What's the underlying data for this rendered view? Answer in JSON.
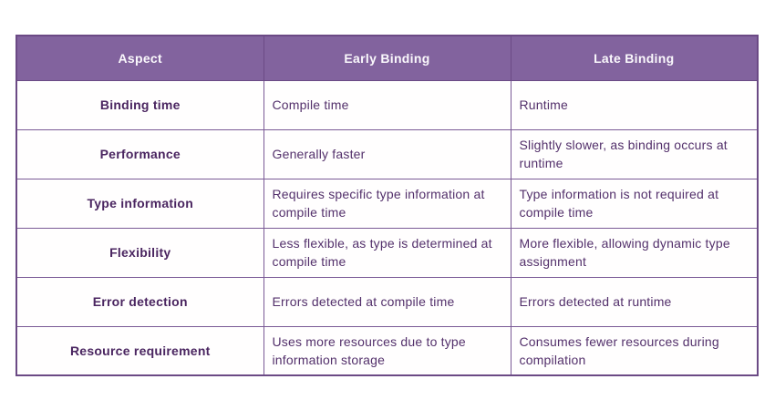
{
  "chart_data": {
    "type": "table",
    "title": "",
    "columns": [
      "Aspect",
      "Early Binding",
      "Late Binding"
    ],
    "rows": [
      [
        "Binding time",
        "Compile time",
        "Runtime"
      ],
      [
        "Performance",
        "Generally faster",
        "Slightly slower, as binding occurs at runtime"
      ],
      [
        "Type information",
        "Requires specific type information at compile time",
        "Type information is not required at compile time"
      ],
      [
        "Flexibility",
        "Less flexible, as type is determined at compile time",
        "More flexible, allowing dynamic type assignment"
      ],
      [
        "Error detection",
        "Errors detected at compile time",
        "Errors detected at runtime"
      ],
      [
        "Resource requirement",
        "Uses more resources due to type information storage",
        "Consumes fewer resources during compilation"
      ]
    ],
    "layout": {
      "header_position": "top",
      "grid": true
    }
  },
  "table": {
    "headers": [
      "Aspect",
      "Early Binding",
      "Late Binding"
    ],
    "rows": [
      {
        "aspect": "Binding time",
        "early_binding": "Compile time",
        "late_binding": "Runtime"
      },
      {
        "aspect": "Performance",
        "early_binding": "Generally faster",
        "late_binding": "Slightly slower, as binding occurs at runtime"
      },
      {
        "aspect": "Type information",
        "early_binding": "Requires specific type information at compile time",
        "late_binding": "Type information is not required at compile time"
      },
      {
        "aspect": "Flexibility",
        "early_binding": "Less flexible, as type is determined at compile time",
        "late_binding": "More flexible, allowing dynamic type assignment"
      },
      {
        "aspect": "Error detection",
        "early_binding": "Errors detected at compile time",
        "late_binding": "Errors detected at runtime"
      },
      {
        "aspect": "Resource requirement",
        "early_binding": "Uses more resources due to type information storage",
        "late_binding": "Consumes fewer resources during compilation"
      }
    ],
    "colors": {
      "header_bg": "#82639E",
      "header_text": "#FAF8FC",
      "border": "#7A5A96",
      "border_outer": "#6B4A85",
      "body_text": "#53306B",
      "aspect_text": "#4A2560",
      "page_bg": "#FFFFFF"
    }
  }
}
